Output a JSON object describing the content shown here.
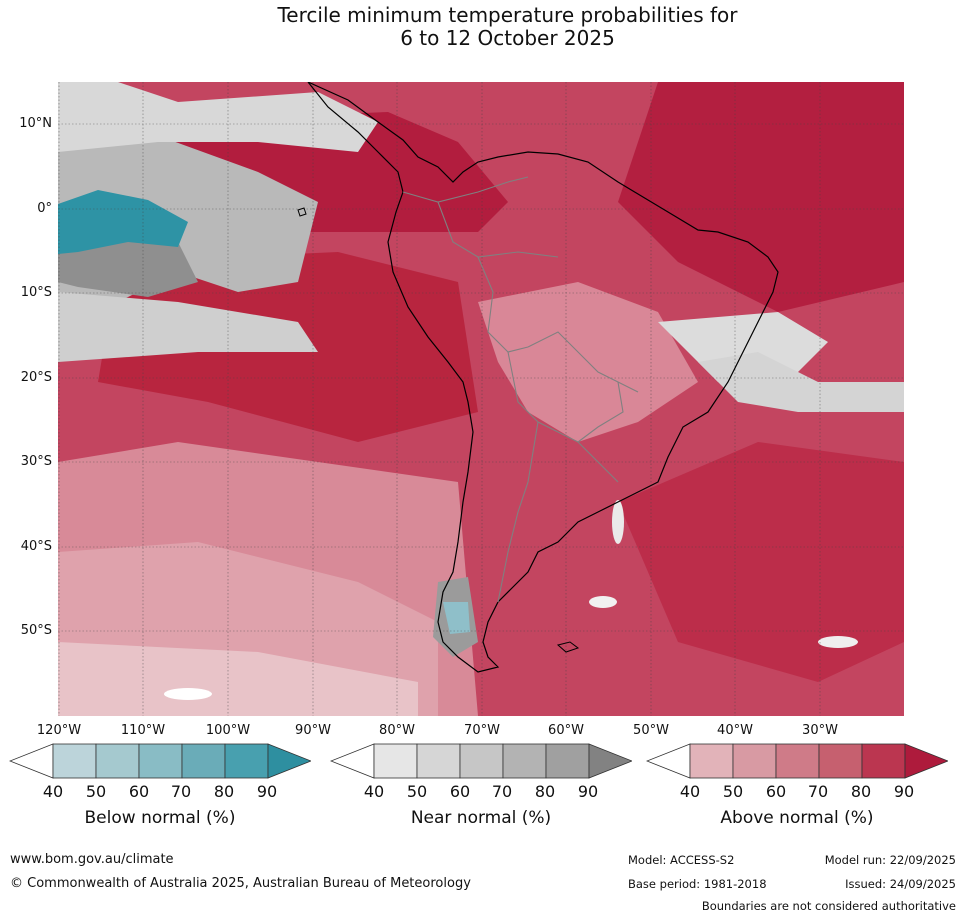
{
  "title": {
    "line1": "Tercile minimum temperature probabilities for",
    "line2": "6 to 12 October 2025"
  },
  "map": {
    "region": "South America",
    "lat_labels": [
      "10°N",
      "0°",
      "10°S",
      "20°S",
      "30°S",
      "40°S",
      "50°S"
    ],
    "lon_labels": [
      "120°W",
      "110°W",
      "100°W",
      "90°W",
      "80°W",
      "70°W",
      "60°W",
      "50°W",
      "40°W",
      "30°W"
    ]
  },
  "colorbars": [
    {
      "name": "below",
      "label": "Below normal (%)",
      "ticks": [
        "40",
        "50",
        "60",
        "70",
        "80",
        "90"
      ],
      "colors": [
        "#ffffff",
        "#bcd4da",
        "#a5c9cf",
        "#89bcc5",
        "#6aacb8",
        "#48a0af",
        "#2e8fa0"
      ]
    },
    {
      "name": "near",
      "label": "Near normal (%)",
      "ticks": [
        "40",
        "50",
        "60",
        "70",
        "80",
        "90"
      ],
      "colors": [
        "#ffffff",
        "#e6e6e6",
        "#d6d6d6",
        "#c6c6c6",
        "#b3b3b3",
        "#a0a0a0",
        "#828282"
      ]
    },
    {
      "name": "above",
      "label": "Above normal (%)",
      "ticks": [
        "40",
        "50",
        "60",
        "70",
        "80",
        "90"
      ],
      "colors": [
        "#ffffff",
        "#e2b3b9",
        "#d89aa3",
        "#cf7b88",
        "#c6606f",
        "#bb3650",
        "#ae1b3c"
      ]
    }
  ],
  "footer": {
    "website": "www.bom.gov.au/climate",
    "copyright": "© Commonwealth of Australia 2025, Australian Bureau of Meteorology",
    "model": "Model: ACCESS-S2",
    "model_run": "Model run: 22/09/2025",
    "base_period": "Base period: 1981-2018",
    "issued": "Issued: 24/09/2025",
    "disclaimer": "Boundaries are not considered authoritative"
  }
}
